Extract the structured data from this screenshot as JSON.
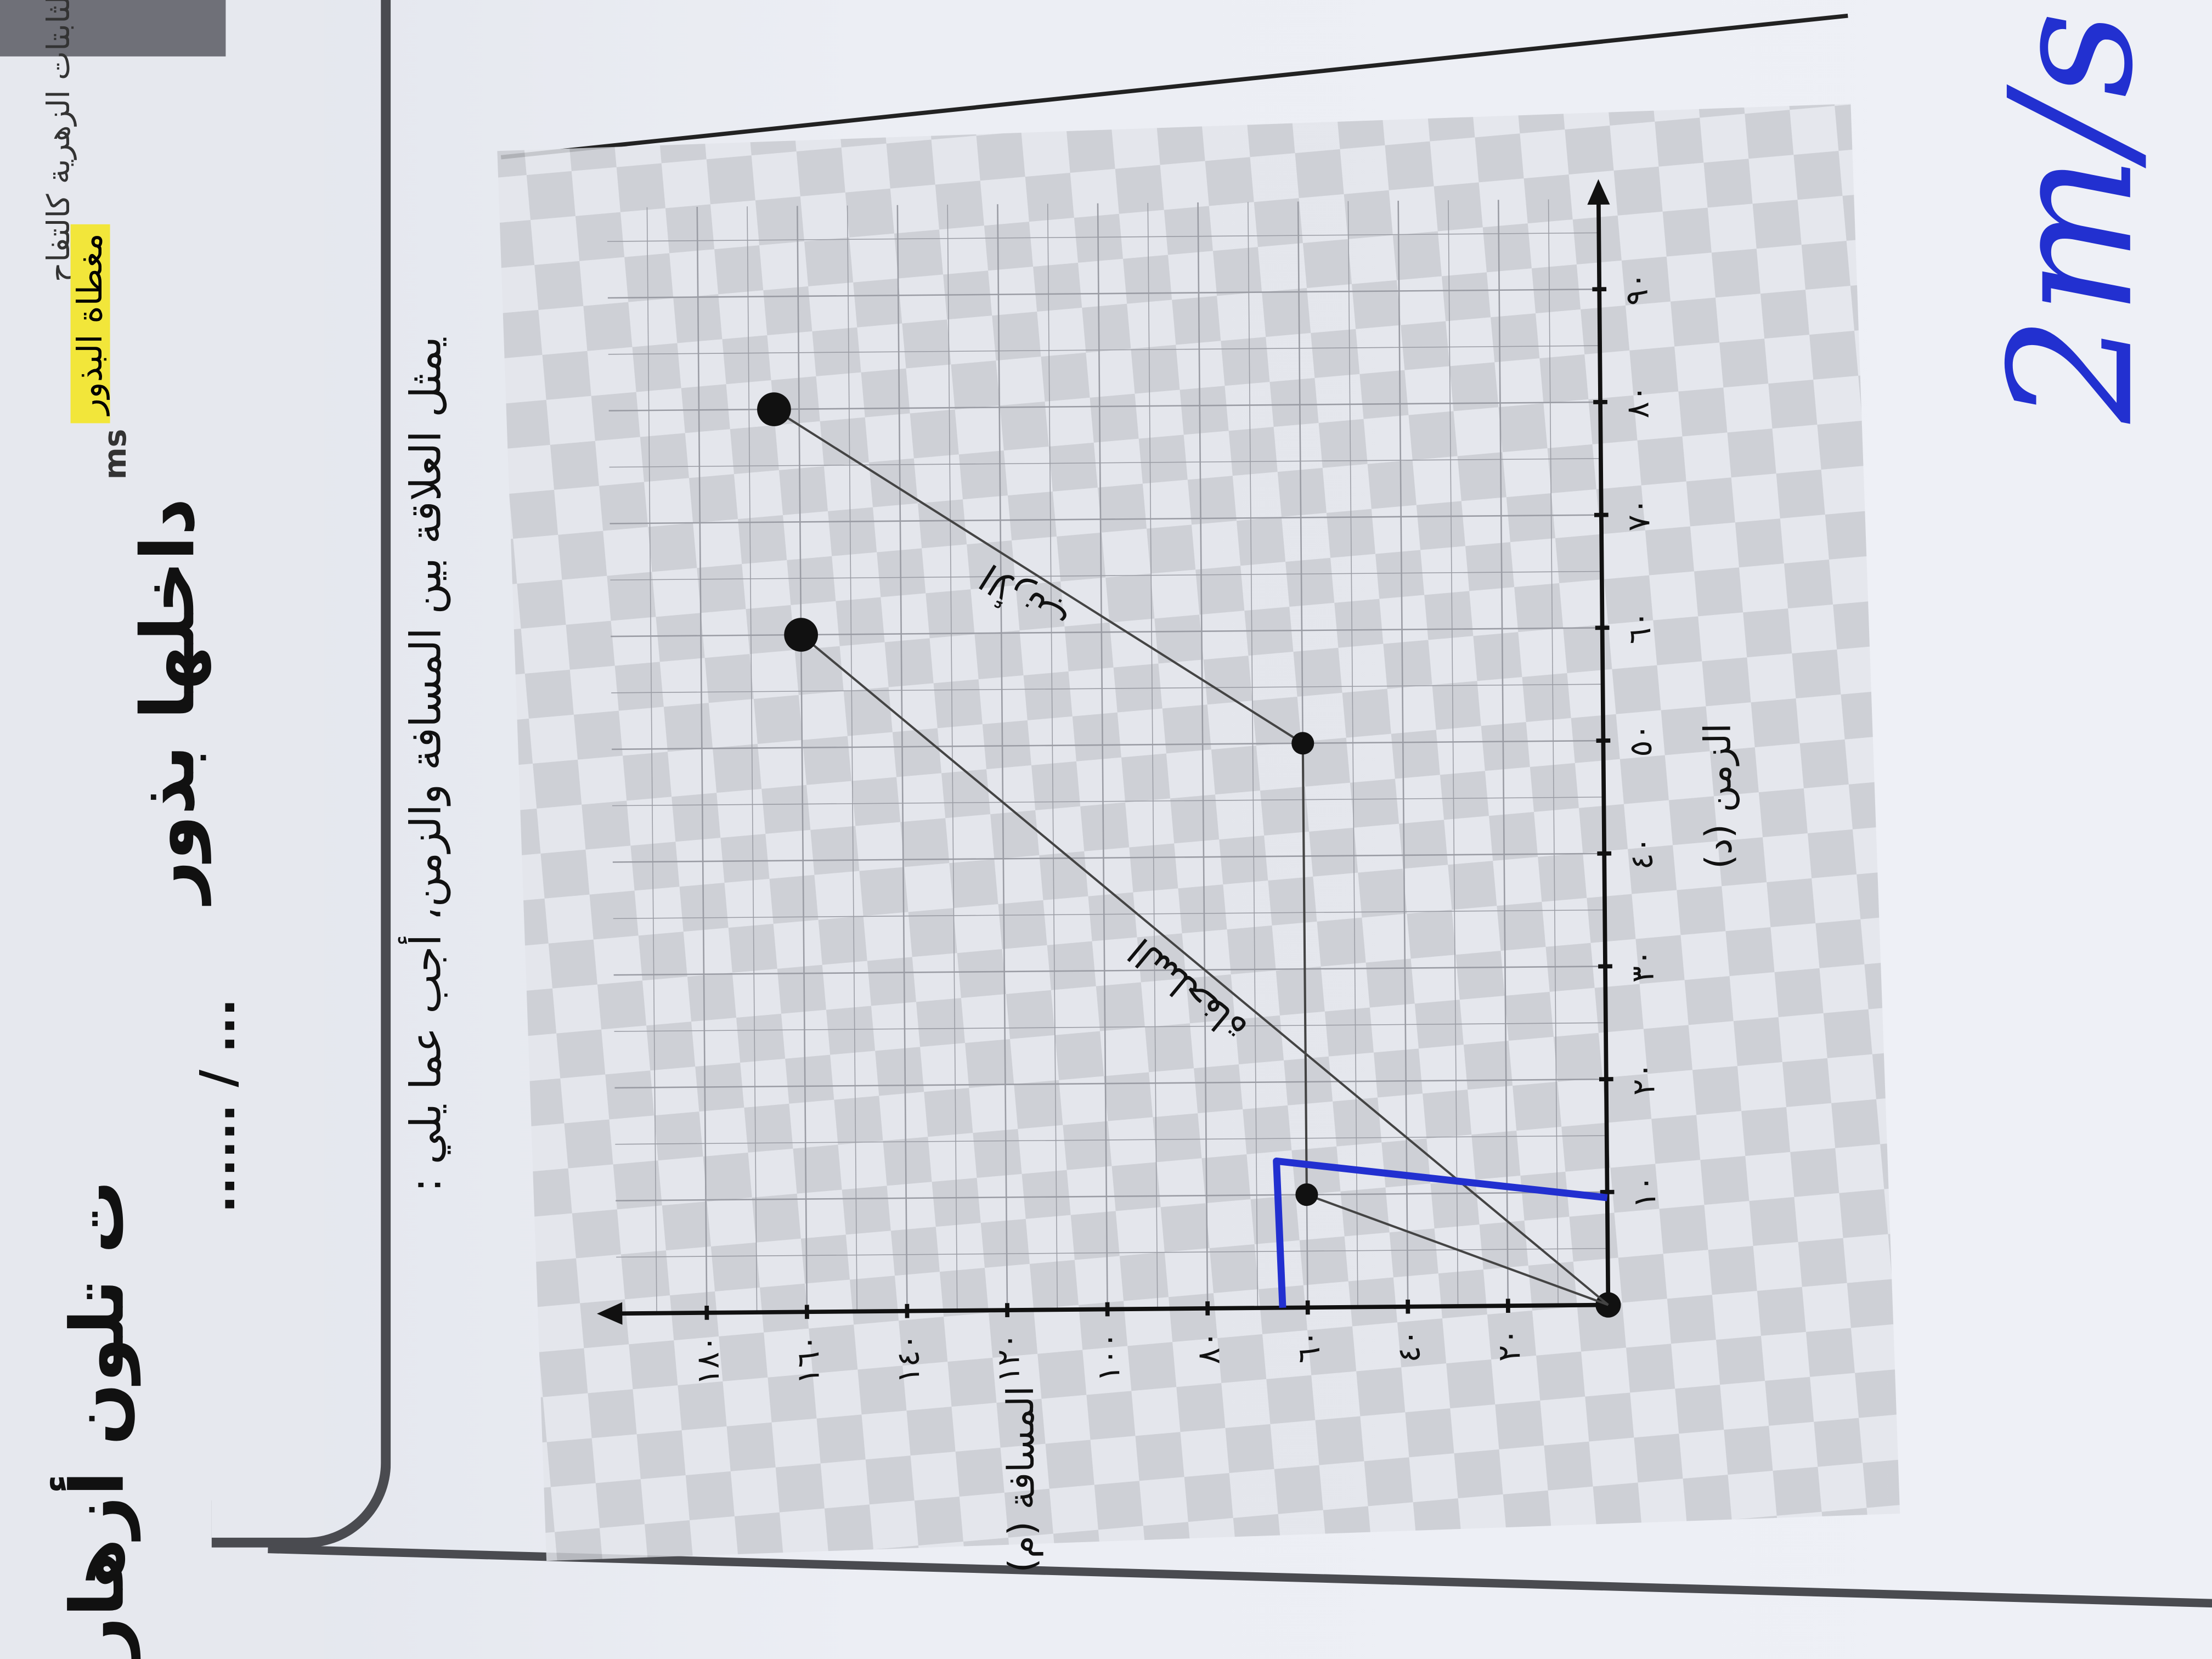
{
  "page": {
    "handwritten_left": "داخلها بذور",
    "handwritten_left_2": "ت تلون أزهار",
    "printed_snippet": "الثابتات الزهرية كالتفاح",
    "highlighted_text": "مغطاة البذور",
    "latin_snippet": "ms",
    "dotted_answer": "...... / ...",
    "question": "يمثل العلاقة بين المسافة والزمن، أجب عما يلي :",
    "handwritten_answer": "2m/s",
    "ink_color": "#2230d0",
    "highlight_color": "#f2e63a"
  },
  "chart_data": {
    "type": "line",
    "title": "",
    "xlabel": "الزمن (د)",
    "ylabel": "المسافة (م)",
    "xlim": [
      0,
      98
    ],
    "ylim": [
      0,
      198
    ],
    "x_ticks": [
      10,
      20,
      30,
      40,
      50,
      60,
      70,
      80,
      90
    ],
    "x_tick_labels": [
      "١٠",
      "٢٠",
      "٣٠",
      "٤٠",
      "٥٠",
      "٦٠",
      "٧٠",
      "٨٠",
      "٩٠"
    ],
    "y_ticks": [
      20,
      40,
      60,
      80,
      100,
      120,
      140,
      160,
      180
    ],
    "y_tick_labels": [
      "٢٠",
      "٤٠",
      "٦٠",
      "٨٠",
      "١٠٠",
      "١٢٠",
      "١٤٠",
      "١٦٠",
      "١٨٠"
    ],
    "grid": true,
    "orientation": "page rotated 90° counter-clockwise",
    "series": [
      {
        "name": "الأرنب",
        "color": "#444444",
        "points": [
          [
            0,
            0
          ],
          [
            10,
            60
          ],
          [
            50,
            60
          ],
          [
            80,
            165
          ]
        ]
      },
      {
        "name": "السلحفاة",
        "color": "#444444",
        "points": [
          [
            0,
            0
          ],
          [
            60,
            160
          ]
        ]
      }
    ],
    "handwritten_marks": {
      "color": "#2230d0",
      "points": [
        [
          0,
          65
        ],
        [
          13,
          66
        ],
        [
          9.5,
          0
        ]
      ]
    }
  }
}
